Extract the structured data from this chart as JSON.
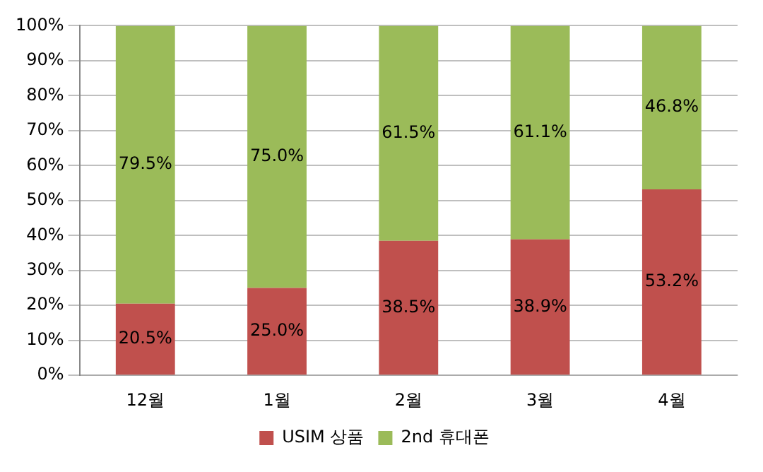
{
  "chart_data": {
    "type": "bar",
    "stacked": true,
    "categories": [
      "12월",
      "1월",
      "2월",
      "3월",
      "4월"
    ],
    "series": [
      {
        "name": "USIM 상품",
        "color": "#c0504d",
        "values": [
          20.5,
          25.0,
          38.5,
          38.9,
          53.2
        ],
        "value_labels": [
          "20.5%",
          "25.0%",
          "38.5%",
          "38.9%",
          "53.2%"
        ]
      },
      {
        "name": "2nd 휴대폰",
        "color": "#9bbb59",
        "values": [
          79.5,
          75.0,
          61.5,
          61.1,
          46.8
        ],
        "value_labels": [
          "79.5%",
          "75.0%",
          "61.5%",
          "61.1%",
          "46.8%"
        ]
      }
    ],
    "ylim": [
      0,
      100
    ],
    "yticks": [
      {
        "value": 0,
        "label": "0%"
      },
      {
        "value": 10,
        "label": "10%"
      },
      {
        "value": 20,
        "label": "20%"
      },
      {
        "value": 30,
        "label": "30%"
      },
      {
        "value": 40,
        "label": "40%"
      },
      {
        "value": 50,
        "label": "50%"
      },
      {
        "value": 60,
        "label": "60%"
      },
      {
        "value": 70,
        "label": "70%"
      },
      {
        "value": 80,
        "label": "80%"
      },
      {
        "value": 90,
        "label": "90%"
      },
      {
        "value": 100,
        "label": "100%"
      }
    ],
    "grid": "y",
    "legend": "bottom"
  }
}
